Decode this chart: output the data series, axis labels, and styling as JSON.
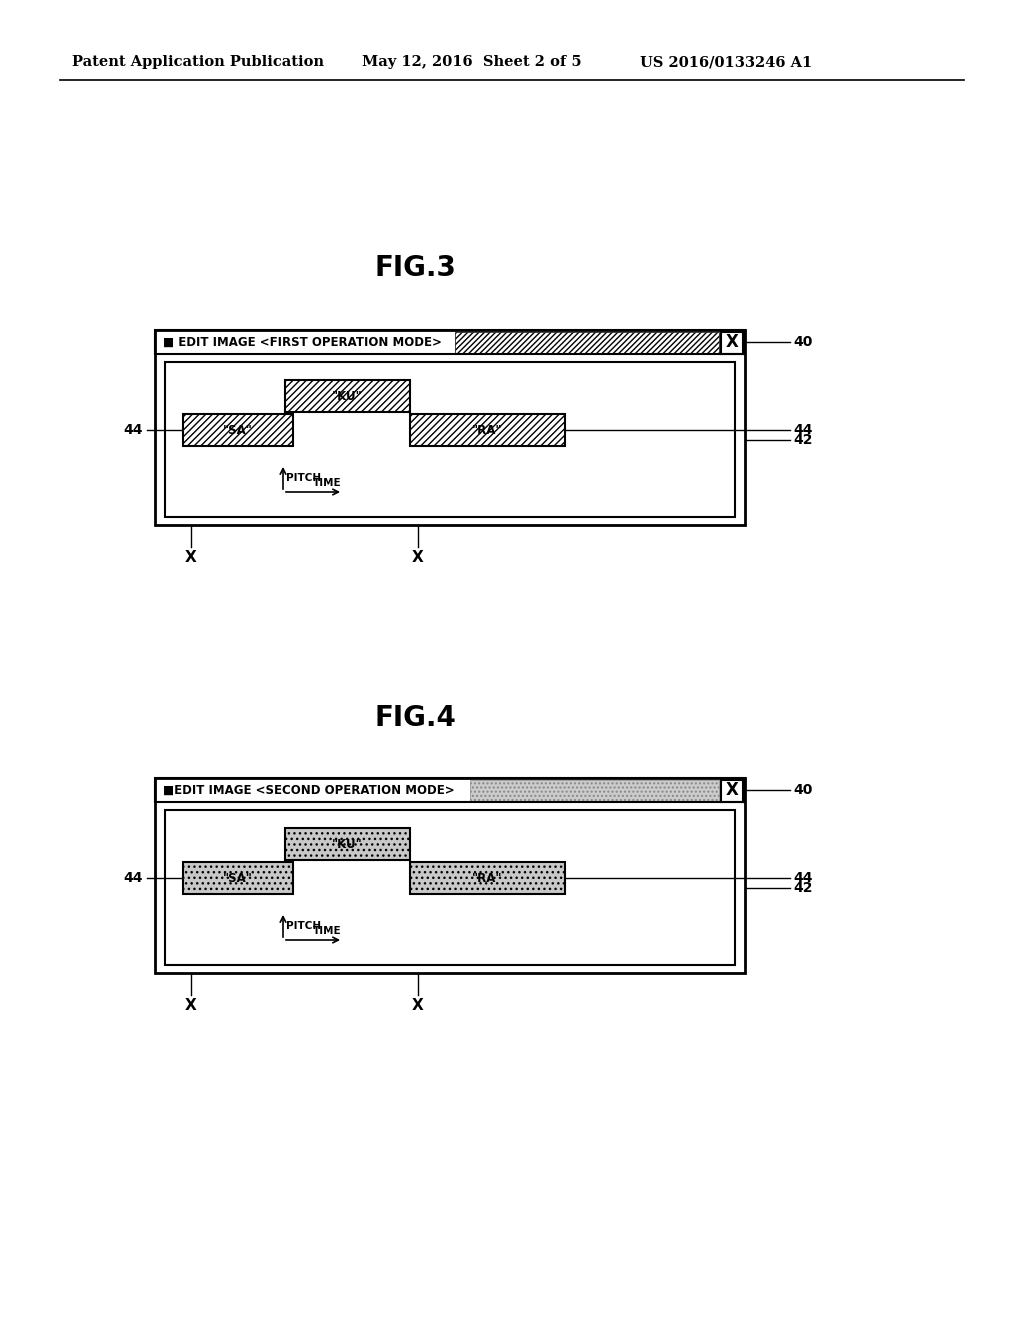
{
  "header_left": "Patent Application Publication",
  "header_mid": "May 12, 2016  Sheet 2 of 5",
  "header_right": "US 2016/0133246 A1",
  "fig3_title": "FIG.3",
  "fig4_title": "FIG.4",
  "fig3_window_title": "■ EDIT IMAGE <FIRST OPERATION MODE>",
  "fig4_window_title": "■EDIT IMAGE <SECOND OPERATION MODE>",
  "label_40": "40",
  "label_42": "42",
  "label_44": "44",
  "label_x": "X",
  "pitch_label": "PITCH",
  "time_label": "TIME",
  "bg_color": "#ffffff",
  "label_ku": "\"KU\"",
  "label_sa": "\"SA\"",
  "label_ra": "\"RA\""
}
